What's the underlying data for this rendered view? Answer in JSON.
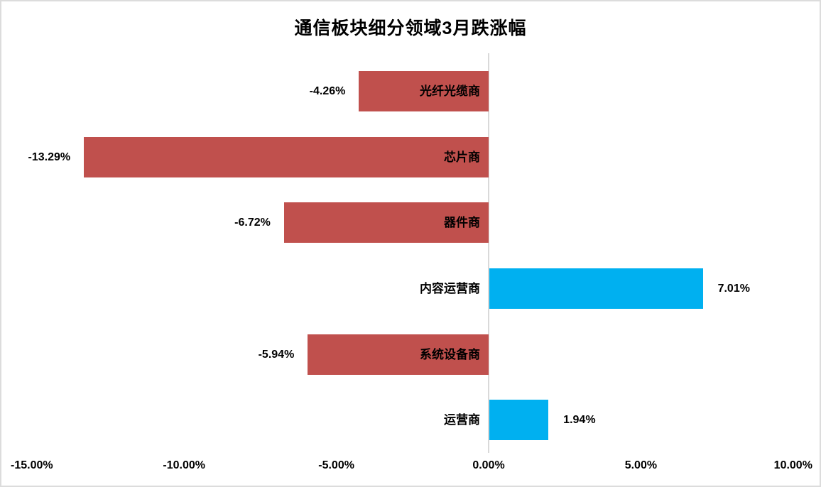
{
  "chart": {
    "title": "通信板块细分领域3月跌涨幅"
  },
  "chart_data": {
    "type": "bar",
    "orientation": "horizontal",
    "title": "通信板块细分领域3月跌涨幅",
    "categories": [
      "光纤光缆商",
      "芯片商",
      "器件商",
      "内容运营商",
      "系统设备商",
      "运营商"
    ],
    "values": [
      -4.26,
      -13.29,
      -6.72,
      7.01,
      -5.94,
      1.94
    ],
    "value_labels": [
      "-4.26%",
      "-13.29%",
      "-6.72%",
      "7.01%",
      "-5.94%",
      "1.94%"
    ],
    "unit": "%",
    "xlim": [
      -15,
      10
    ],
    "x_ticks": [
      {
        "value": -15,
        "label": "-15.00%"
      },
      {
        "value": -10,
        "label": "-10.00%"
      },
      {
        "value": -5,
        "label": "-5.00%"
      },
      {
        "value": 0,
        "label": "0.00%"
      },
      {
        "value": 5,
        "label": "5.00%"
      },
      {
        "value": 10,
        "label": "10.00%"
      }
    ],
    "grid": false,
    "legend": null,
    "colors": {
      "negative_bar": "#C0504D",
      "positive_bar": "#00B0F0",
      "axis_line": "#D9D9D9",
      "frame_border": "#DCDCDC",
      "text": "#000000"
    },
    "label_layout": {
      "category_labels": "next to zero axis (appear inside negative bars)",
      "value_labels": "outside end of each bar"
    }
  }
}
